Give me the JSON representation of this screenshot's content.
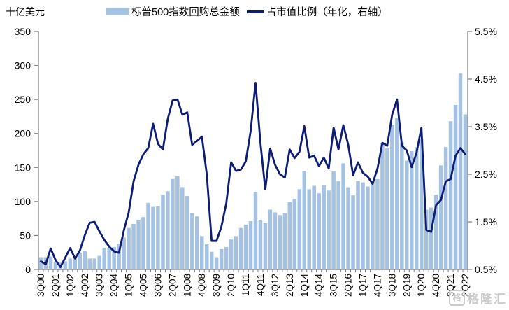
{
  "watermark": {
    "text": "格隆汇",
    "icon_char": "格"
  },
  "chart_data": {
    "type": "combo",
    "title": "",
    "legend_position": "top",
    "grid": false,
    "plot": {
      "bg": "#FFFFFF",
      "axis_color": "#7F7F7F"
    },
    "categories": [
      "3Q00",
      "4Q00",
      "1Q01",
      "2Q01",
      "3Q01",
      "4Q01",
      "1Q02",
      "2Q02",
      "3Q02",
      "4Q02",
      "1Q03",
      "2Q03",
      "3Q03",
      "4Q03",
      "1Q04",
      "2Q04",
      "3Q04",
      "4Q04",
      "1Q05",
      "2Q05",
      "3Q05",
      "4Q05",
      "1Q06",
      "2Q06",
      "3Q06",
      "4Q06",
      "1Q07",
      "2Q07",
      "3Q07",
      "4Q07",
      "1Q08",
      "2Q08",
      "3Q08",
      "4Q08",
      "1Q09",
      "2Q09",
      "3Q09",
      "4Q09",
      "1Q10",
      "2Q10",
      "3Q10",
      "4Q10",
      "1Q11",
      "2Q11",
      "3Q11",
      "4Q11",
      "1Q12",
      "2Q12",
      "3Q12",
      "4Q12",
      "1Q13",
      "2Q13",
      "3Q13",
      "4Q13",
      "1Q14",
      "2Q14",
      "3Q14",
      "4Q14",
      "1Q15",
      "2Q15",
      "3Q15",
      "4Q15",
      "1Q16",
      "2Q16",
      "3Q16",
      "4Q16",
      "1Q17",
      "2Q17",
      "3Q17",
      "4Q17",
      "1Q18",
      "2Q18",
      "3Q18",
      "4Q18",
      "1Q19",
      "2Q19",
      "3Q19",
      "4Q19",
      "1Q20",
      "2Q20",
      "3Q20",
      "4Q20",
      "1Q21",
      "2Q21",
      "3Q21",
      "4Q21",
      "1Q22",
      "2Q22"
    ],
    "x_axis": {
      "tick_every": 3,
      "tick_labels": [
        "3Q00",
        "2Q01",
        "1Q02",
        "4Q02",
        "3Q03",
        "2Q04",
        "1Q05",
        "4Q05",
        "3Q06",
        "2Q07",
        "1Q08",
        "4Q08",
        "3Q09",
        "2Q10",
        "1Q11",
        "4Q11",
        "3Q12",
        "2Q13",
        "1Q14",
        "4Q14",
        "3Q15",
        "2Q16",
        "1Q17",
        "4Q17",
        "3Q18",
        "2Q19",
        "1Q20",
        "4Q20",
        "3Q21",
        "2Q22"
      ]
    },
    "left_axis": {
      "label": "十亿美元",
      "min": 0,
      "max": 350,
      "step": 50,
      "tick_labels": [
        "0",
        "50",
        "100",
        "150",
        "200",
        "250",
        "300",
        "350"
      ]
    },
    "right_axis": {
      "min": 0.5,
      "max": 5.5,
      "step": 1.0,
      "tick_labels": [
        "0.5%",
        "1.5%",
        "2.5%",
        "3.5%",
        "4.5%",
        "5.5%"
      ]
    },
    "series": [
      {
        "name": "标普500指数回购总金额",
        "type": "bar",
        "axis": "left",
        "color": "#A5C2E2",
        "values": [
          18,
          18,
          19,
          11,
          10,
          12,
          16,
          17,
          25,
          27,
          16,
          16,
          20,
          32,
          32,
          33,
          38,
          47,
          61,
          67,
          73,
          77,
          98,
          92,
          93,
          110,
          115,
          133,
          137,
          121,
          108,
          83,
          78,
          49,
          37,
          26,
          18,
          30,
          33,
          44,
          49,
          61,
          66,
          71,
          114,
          73,
          68,
          88,
          84,
          80,
          83,
          99,
          104,
          118,
          145,
          118,
          123,
          112,
          124,
          116,
          144,
          130,
          156,
          121,
          109,
          130,
          128,
          122,
          129,
          133,
          186,
          178,
          213,
          223,
          187,
          160,
          174,
          180,
          192,
          88,
          91,
          110,
          153,
          180,
          218,
          242,
          288,
          228
        ]
      },
      {
        "name": "占市值比例（年化，右轴）",
        "type": "line",
        "axis": "right",
        "color": "#0D1C74",
        "values": [
          0.67,
          0.61,
          0.94,
          0.7,
          0.55,
          0.75,
          0.95,
          0.73,
          0.9,
          1.22,
          1.48,
          1.5,
          1.3,
          1.12,
          0.98,
          0.88,
          0.85,
          1.32,
          1.7,
          2.35,
          2.7,
          2.92,
          3.05,
          3.56,
          3.14,
          3.02,
          3.66,
          4.05,
          4.07,
          3.75,
          3.8,
          3.12,
          3.2,
          3.29,
          2.5,
          1.1,
          1.1,
          1.4,
          1.89,
          2.75,
          2.57,
          2.6,
          2.77,
          3.41,
          4.42,
          3.16,
          2.18,
          3.04,
          2.7,
          2.5,
          2.43,
          3.02,
          2.84,
          2.97,
          3.51,
          2.85,
          2.89,
          2.67,
          2.85,
          2.62,
          3.48,
          3.02,
          3.53,
          3.12,
          2.48,
          2.75,
          2.53,
          2.45,
          2.3,
          2.62,
          3.16,
          3.1,
          3.75,
          4.07,
          3.1,
          3.0,
          2.65,
          2.95,
          3.48,
          1.33,
          1.29,
          1.85,
          1.96,
          2.35,
          2.4,
          2.89,
          3.05,
          2.92
        ]
      }
    ]
  }
}
